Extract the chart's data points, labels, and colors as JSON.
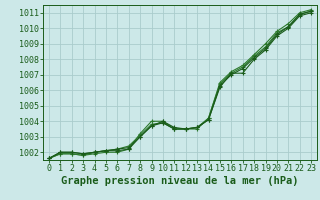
{
  "title": "Graphe pression niveau de la mer (hPa)",
  "background_color": "#cce8e8",
  "grid_color": "#aacccc",
  "line_color_dark": "#1a5c1a",
  "line_color_light": "#2d7a2d",
  "xlim": [
    -0.5,
    23.5
  ],
  "ylim": [
    1001.5,
    1011.5
  ],
  "yticks": [
    1002,
    1003,
    1004,
    1005,
    1006,
    1007,
    1008,
    1009,
    1010,
    1011
  ],
  "xticks": [
    0,
    1,
    2,
    3,
    4,
    5,
    6,
    7,
    8,
    9,
    10,
    11,
    12,
    13,
    14,
    15,
    16,
    17,
    18,
    19,
    20,
    21,
    22,
    23
  ],
  "series1": [
    1001.6,
    1002.0,
    1002.0,
    1001.9,
    1002.0,
    1002.1,
    1002.1,
    1002.2,
    1003.0,
    1003.7,
    1003.9,
    1003.5,
    1003.5,
    1003.6,
    1004.1,
    1006.2,
    1007.1,
    1007.1,
    1008.0,
    1008.6,
    1009.5,
    1010.0,
    1010.8,
    1011.0
  ],
  "series2": [
    1001.6,
    1002.0,
    1002.0,
    1001.9,
    1002.0,
    1002.1,
    1002.2,
    1002.3,
    1003.0,
    1003.7,
    1004.0,
    1003.6,
    1003.5,
    1003.6,
    1004.1,
    1006.3,
    1007.0,
    1007.4,
    1008.1,
    1008.7,
    1009.6,
    1010.1,
    1010.9,
    1011.1
  ],
  "series3": [
    1001.6,
    1001.9,
    1001.9,
    1001.8,
    1001.9,
    1002.0,
    1002.0,
    1002.2,
    1003.2,
    1004.0,
    1004.0,
    1003.5,
    1003.5,
    1003.5,
    1004.2,
    1006.5,
    1007.2,
    1007.6,
    1008.3,
    1009.0,
    1009.8,
    1010.3,
    1011.0,
    1011.2
  ],
  "series4": [
    1001.6,
    1001.9,
    1001.9,
    1001.8,
    1002.0,
    1002.1,
    1002.2,
    1002.4,
    1003.1,
    1003.8,
    1003.9,
    1003.5,
    1003.5,
    1003.6,
    1004.2,
    1006.4,
    1007.1,
    1007.5,
    1008.2,
    1008.8,
    1009.7,
    1010.1,
    1010.9,
    1011.1
  ],
  "title_fontsize": 7.5,
  "tick_fontsize": 6.0
}
